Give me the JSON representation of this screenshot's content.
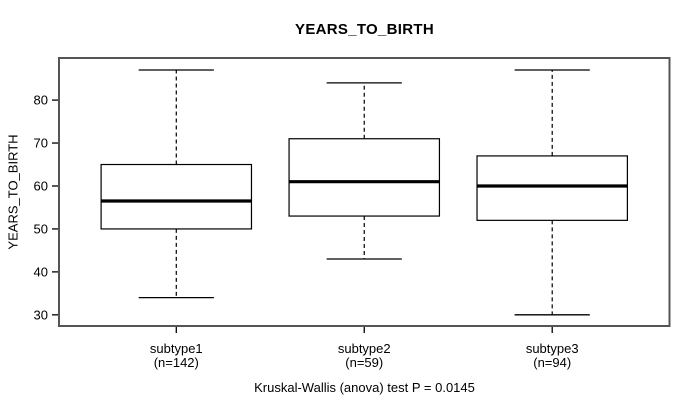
{
  "figure": {
    "title": "YEARS_TO_BIRTH",
    "background": "#ffffff"
  },
  "chart_data": {
    "type": "boxplot",
    "title": "YEARS_TO_BIRTH",
    "ylabel": "YEARS_TO_BIRTH",
    "xlabel": "",
    "footer": "Kruskal-Wallis (anova) test P = 0.0145",
    "ylim": [
      27.4,
      89.8
    ],
    "yticks": [
      30,
      40,
      50,
      60,
      70,
      80
    ],
    "xlim": [
      0.376,
      3.624
    ],
    "positions": [
      1,
      2,
      3
    ],
    "box_width": 0.8,
    "cap_width": 0.4,
    "grid": false,
    "legend": "none",
    "groups": [
      {
        "label": "subtype1",
        "sublabel": "(n=142)",
        "n": 142,
        "whisker_low": 34,
        "q1": 50,
        "median": 56.5,
        "q3": 65,
        "whisker_high": 87,
        "outliers": []
      },
      {
        "label": "subtype2",
        "sublabel": "(n=59)",
        "n": 59,
        "whisker_low": 43,
        "q1": 53,
        "median": 61,
        "q3": 71,
        "whisker_high": 84,
        "outliers": []
      },
      {
        "label": "subtype3",
        "sublabel": "(n=94)",
        "n": 94,
        "whisker_low": 30,
        "q1": 52,
        "median": 60,
        "q3": 67,
        "whisker_high": 87,
        "outliers": []
      }
    ],
    "colors": {
      "line": "#000000",
      "frame": "#555555",
      "box_fill": "#ffffff",
      "median": "#000000",
      "text": "#000000",
      "background": "#ffffff"
    }
  }
}
